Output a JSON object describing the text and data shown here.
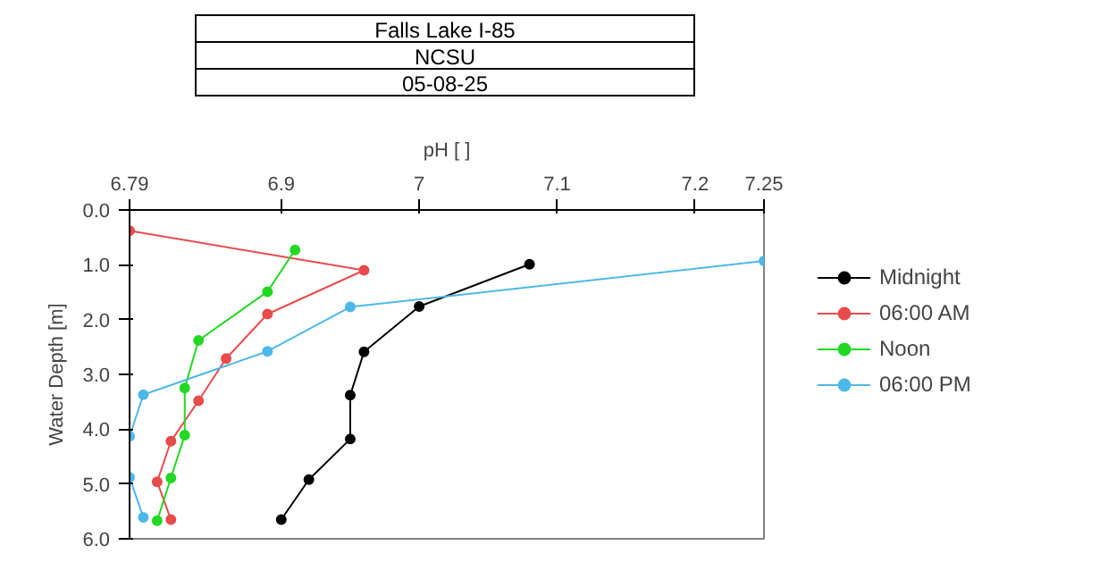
{
  "chart_data": {
    "type": "line",
    "title": "Falls Lake I-85",
    "subtitle": "NCSU",
    "annotations": [
      "05-08-25"
    ],
    "xlabel": "pH [ ]",
    "ylabel": "Water Depth [m]",
    "orientation": "horizontal",
    "xlim": [
      6.79,
      7.25
    ],
    "xticks": [
      6.79,
      6.9,
      7,
      7.1,
      7.2,
      7.25
    ],
    "ylim": [
      6.0,
      0.0
    ],
    "yticks": [
      {
        "value": 0,
        "label": "0.0"
      },
      {
        "value": 1,
        "label": "1.0"
      },
      {
        "value": 2,
        "label": "2.0"
      },
      {
        "value": 3,
        "label": "3.0"
      },
      {
        "value": 4,
        "label": "4.0"
      },
      {
        "value": 5,
        "label": "5.0"
      },
      {
        "value": 6,
        "label": "6.0"
      }
    ],
    "grid": false,
    "legend": "right",
    "marker": "circle",
    "line_style": "solid",
    "series": [
      {
        "name": "Midnight",
        "color": "#000000",
        "x": [
          0.99,
          1.76,
          2.59,
          3.38,
          4.18,
          4.92,
          5.65
        ],
        "values": [
          7.08,
          7.0,
          6.96,
          6.95,
          6.95,
          6.92,
          6.9
        ]
      },
      {
        "name": "06:00 AM",
        "color": "#e84b4b",
        "x": [
          0.38,
          1.1,
          1.9,
          2.71,
          3.48,
          4.22,
          4.96,
          5.65
        ],
        "values": [
          6.79,
          6.96,
          6.89,
          6.86,
          6.84,
          6.82,
          6.81,
          6.82
        ]
      },
      {
        "name": "Noon",
        "color": "#22d822",
        "x": [
          0.73,
          1.49,
          2.38,
          3.25,
          4.11,
          4.89,
          5.67
        ],
        "values": [
          6.91,
          6.89,
          6.84,
          6.83,
          6.83,
          6.82,
          6.81
        ]
      },
      {
        "name": "06:00 PM",
        "color": "#4db8e8",
        "x": [
          0.93,
          1.77,
          2.58,
          3.37,
          4.13,
          4.88,
          5.61
        ],
        "values": [
          7.25,
          6.95,
          6.89,
          6.8,
          6.79,
          6.79,
          6.8
        ]
      }
    ]
  }
}
